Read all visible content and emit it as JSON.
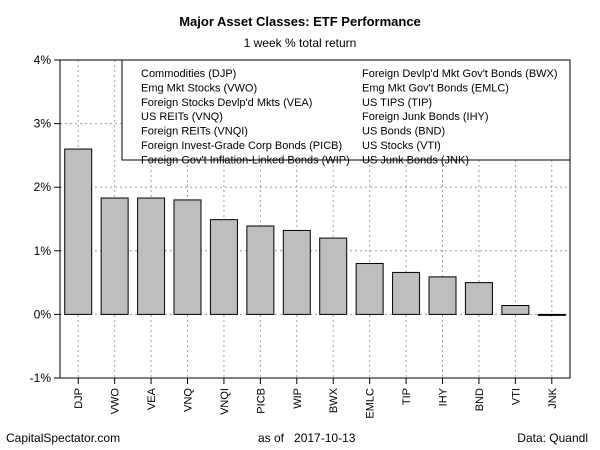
{
  "chart_data": {
    "type": "bar",
    "title": "Major Asset Classes: ETF Performance",
    "subtitle": "1 week % total return",
    "categories": [
      "DJP",
      "VWO",
      "VEA",
      "VNQ",
      "VNQI",
      "PICB",
      "WIP",
      "BWX",
      "EMLC",
      "TIP",
      "IHY",
      "BND",
      "VTI",
      "JNK"
    ],
    "values": [
      2.6,
      1.83,
      1.83,
      1.8,
      1.49,
      1.39,
      1.32,
      1.2,
      0.8,
      0.66,
      0.59,
      0.5,
      0.14,
      0.0
    ],
    "ylim": [
      -1,
      4
    ],
    "yticks": [
      -1,
      0,
      1,
      2,
      3,
      4
    ],
    "yticklabels": [
      "-1%",
      "0%",
      "1%",
      "2%",
      "3%",
      "4%"
    ],
    "bar_color": "#bebebe",
    "grid": true,
    "legend_placement": "top-right",
    "legend": {
      "left_column": [
        "Commodities (DJP)",
        "Emg Mkt Stocks (VWO)",
        "Foreign Stocks Devlp'd Mkts (VEA)",
        "US REITs (VNQ)",
        "Foreign REITs (VNQI)",
        "Foreign Invest-Grade Corp Bonds (PICB)",
        "Foreign Gov't Inflation-Linked Bonds (WIP)"
      ],
      "right_column": [
        "Foreign Devlp'd Mkt Gov't Bonds (BWX)",
        "Emg Mkt Gov't Bonds (EMLC)",
        "US TIPS (TIP)",
        "Foreign Junk Bonds (IHY)",
        "US Bonds (BND)",
        "US Stocks (VTI)",
        "US Junk Bonds (JNK)"
      ]
    }
  },
  "footer": {
    "source_site": "CapitalSpectator.com",
    "as_of_label": "as of",
    "date": "2017-10-13",
    "data_credit": "Data: Quandl"
  }
}
